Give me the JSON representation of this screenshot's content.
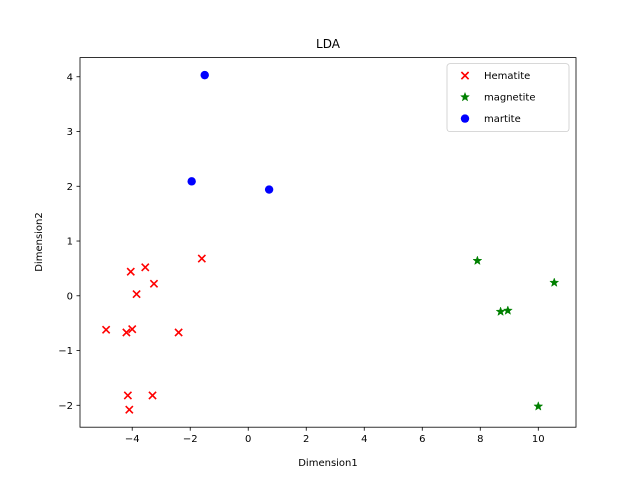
{
  "chart_data": {
    "type": "scatter",
    "title": "LDA",
    "xlabel": "Dimension1",
    "ylabel": "Dimension2",
    "xlim": [
      -5.8,
      11.3
    ],
    "ylim": [
      -2.4,
      4.35
    ],
    "xticks": [
      -4,
      -2,
      0,
      2,
      4,
      6,
      8,
      10
    ],
    "yticks": [
      -2,
      -1,
      0,
      1,
      2,
      3,
      4
    ],
    "grid": false,
    "legend_position": "top-right",
    "series": [
      {
        "name": "Hematite",
        "marker": "x",
        "color": "#ff0000",
        "points": [
          [
            -4.9,
            -0.62
          ],
          [
            -4.2,
            -0.67
          ],
          [
            -4.0,
            -0.61
          ],
          [
            -4.05,
            0.44
          ],
          [
            -3.55,
            0.52
          ],
          [
            -3.25,
            0.22
          ],
          [
            -3.85,
            0.03
          ],
          [
            -2.4,
            -0.67
          ],
          [
            -1.6,
            0.68
          ],
          [
            -4.15,
            -1.82
          ],
          [
            -3.3,
            -1.82
          ],
          [
            -4.1,
            -2.08
          ]
        ]
      },
      {
        "name": "magnetite",
        "marker": "star",
        "color": "#008000",
        "points": [
          [
            7.9,
            0.64
          ],
          [
            8.7,
            -0.29
          ],
          [
            8.95,
            -0.27
          ],
          [
            10.55,
            0.24
          ],
          [
            10.0,
            -2.02
          ]
        ]
      },
      {
        "name": "martite",
        "marker": "circle",
        "color": "#0000ff",
        "points": [
          [
            -1.5,
            4.03
          ],
          [
            -1.95,
            2.09
          ],
          [
            0.72,
            1.94
          ]
        ]
      }
    ]
  }
}
